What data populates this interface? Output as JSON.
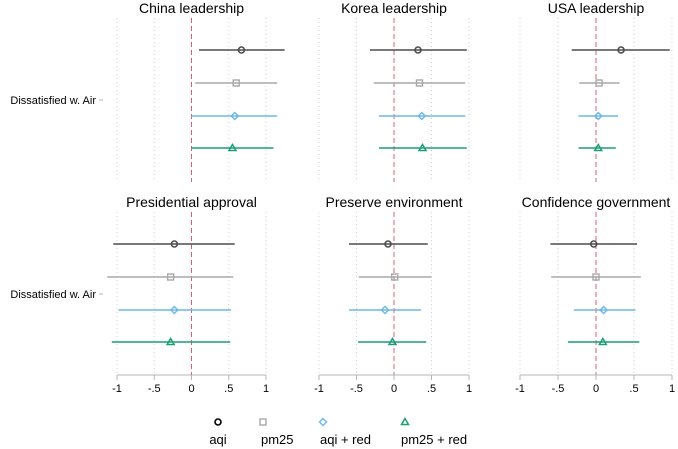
{
  "chart_data": {
    "type": "coefficient-plot",
    "row_label": "Dissatisfied w. Air",
    "xlim": [
      -1,
      1
    ],
    "ticks": [
      -1,
      -0.5,
      0,
      0.5,
      1
    ],
    "tick_labels": [
      "-1",
      "-.5",
      "0",
      ".5",
      "1"
    ],
    "reference_line": 0,
    "grid": "vertical dotted",
    "legend_position": "bottom",
    "series": [
      {
        "name": "aqi",
        "marker": "circle",
        "color": "#4d4d4d"
      },
      {
        "name": "pm25",
        "marker": "square",
        "color": "#a8a8a8"
      },
      {
        "name": "aqi + red",
        "marker": "diamond",
        "color": "#6cb8e6"
      },
      {
        "name": "pm25 + red",
        "marker": "triangle",
        "color": "#1b9e77"
      }
    ],
    "panels": [
      {
        "title": "China leadership",
        "estimates": [
          {
            "series": "aqi",
            "point": 0.67,
            "lo": 0.1,
            "hi": 1.25
          },
          {
            "series": "pm25",
            "point": 0.6,
            "lo": 0.05,
            "hi": 1.15
          },
          {
            "series": "aqi + red",
            "point": 0.58,
            "lo": 0.0,
            "hi": 1.15
          },
          {
            "series": "pm25 + red",
            "point": 0.55,
            "lo": 0.0,
            "hi": 1.1
          }
        ]
      },
      {
        "title": "Korea leadership",
        "estimates": [
          {
            "series": "aqi",
            "point": 0.32,
            "lo": -0.32,
            "hi": 0.97
          },
          {
            "series": "pm25",
            "point": 0.34,
            "lo": -0.27,
            "hi": 0.95
          },
          {
            "series": "aqi + red",
            "point": 0.37,
            "lo": -0.2,
            "hi": 0.95
          },
          {
            "series": "pm25 + red",
            "point": 0.38,
            "lo": -0.2,
            "hi": 0.97
          }
        ]
      },
      {
        "title": "USA leadership",
        "estimates": [
          {
            "series": "aqi",
            "point": 0.33,
            "lo": -0.32,
            "hi": 0.97
          },
          {
            "series": "pm25",
            "point": 0.04,
            "lo": -0.22,
            "hi": 0.31
          },
          {
            "series": "aqi + red",
            "point": 0.03,
            "lo": -0.23,
            "hi": 0.29
          },
          {
            "series": "pm25 + red",
            "point": 0.03,
            "lo": -0.23,
            "hi": 0.26
          }
        ]
      },
      {
        "title": "Presidential approval",
        "estimates": [
          {
            "series": "aqi",
            "point": -0.23,
            "lo": -1.05,
            "hi": 0.58
          },
          {
            "series": "pm25",
            "point": -0.28,
            "lo": -1.13,
            "hi": 0.56
          },
          {
            "series": "aqi + red",
            "point": -0.23,
            "lo": -0.98,
            "hi": 0.53
          },
          {
            "series": "pm25 + red",
            "point": -0.28,
            "lo": -1.07,
            "hi": 0.52
          }
        ]
      },
      {
        "title": "Preserve environment",
        "estimates": [
          {
            "series": "aqi",
            "point": -0.08,
            "lo": -0.6,
            "hi": 0.45
          },
          {
            "series": "pm25",
            "point": 0.01,
            "lo": -0.47,
            "hi": 0.5
          },
          {
            "series": "aqi + red",
            "point": -0.12,
            "lo": -0.6,
            "hi": 0.36
          },
          {
            "series": "pm25 + red",
            "point": -0.02,
            "lo": -0.48,
            "hi": 0.43
          }
        ]
      },
      {
        "title": "Confidence government",
        "estimates": [
          {
            "series": "aqi",
            "point": -0.03,
            "lo": -0.6,
            "hi": 0.54
          },
          {
            "series": "pm25",
            "point": 0.0,
            "lo": -0.59,
            "hi": 0.59
          },
          {
            "series": "aqi + red",
            "point": 0.1,
            "lo": -0.29,
            "hi": 0.52
          },
          {
            "series": "pm25 + red",
            "point": 0.09,
            "lo": -0.37,
            "hi": 0.57
          }
        ]
      }
    ]
  }
}
